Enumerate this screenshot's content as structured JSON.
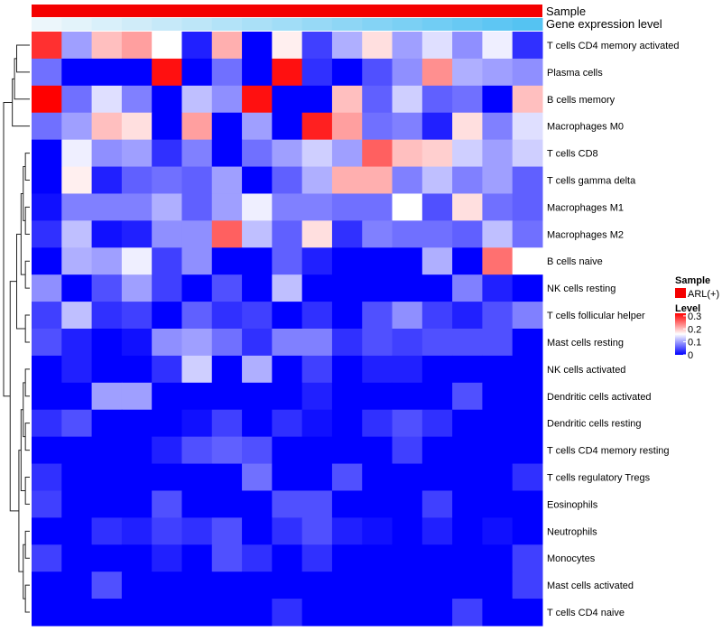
{
  "chart_data": {
    "type": "heatmap",
    "annotations": [
      "Sample",
      "Gene expression level"
    ],
    "colors": {
      "sample_bar": "#f40000",
      "expression_low": "#ecf6fb",
      "expression_high": "#55c3f2",
      "low": "#0000ff",
      "mid": "#ffffff",
      "high": "#ff0000",
      "tree": "#222222"
    },
    "rows": [
      "T cells CD4 memory activated",
      "Plasma cells",
      "B cells memory",
      "Macrophages M0",
      "T cells CD8",
      "T cells gamma delta",
      "Macrophages M1",
      "Macrophages M2",
      "B cells naive",
      "NK cells resting",
      "T cells follicular helper",
      "Mast cells resting",
      "NK cells activated",
      "Dendritic cells activated",
      "Dendritic cells resting",
      "T cells CD4 memory resting",
      "T cells regulatory  Tregs",
      "Eosinophils",
      "Neutrophils",
      "Monocytes",
      "Mast cells activated",
      "T cells CD4 naive"
    ],
    "values": [
      [
        0.29,
        0.1,
        0.2,
        0.22,
        0.16,
        0.02,
        0.21,
        0.0,
        0.17,
        0.04,
        0.11,
        0.18,
        0.1,
        0.14,
        0.09,
        0.15,
        0.03
      ],
      [
        0.07,
        0.0,
        0.0,
        0.0,
        0.31,
        0.0,
        0.07,
        0.0,
        0.31,
        0.03,
        0.0,
        0.05,
        0.09,
        0.23,
        0.11,
        0.1,
        0.09
      ],
      [
        0.32,
        0.07,
        0.14,
        0.08,
        0.0,
        0.12,
        0.09,
        0.31,
        0.0,
        0.0,
        0.2,
        0.06,
        0.13,
        0.06,
        0.07,
        0.0,
        0.2
      ],
      [
        0.07,
        0.1,
        0.2,
        0.18,
        0.0,
        0.22,
        0.0,
        0.1,
        0.0,
        0.3,
        0.22,
        0.07,
        0.08,
        0.02,
        0.18,
        0.08,
        0.14
      ],
      [
        0.0,
        0.15,
        0.09,
        0.1,
        0.03,
        0.08,
        0.0,
        0.07,
        0.1,
        0.13,
        0.1,
        0.26,
        0.2,
        0.19,
        0.13,
        0.1,
        0.13
      ],
      [
        0.0,
        0.17,
        0.02,
        0.06,
        0.07,
        0.06,
        0.1,
        0.0,
        0.06,
        0.11,
        0.21,
        0.21,
        0.08,
        0.12,
        0.08,
        0.1,
        0.06
      ],
      [
        0.01,
        0.08,
        0.08,
        0.08,
        0.11,
        0.06,
        0.1,
        0.15,
        0.08,
        0.08,
        0.07,
        0.07,
        0.16,
        0.05,
        0.18,
        0.07,
        0.06
      ],
      [
        0.03,
        0.12,
        0.01,
        0.02,
        0.09,
        0.09,
        0.26,
        0.12,
        0.06,
        0.18,
        0.03,
        0.08,
        0.07,
        0.07,
        0.06,
        0.12,
        0.07
      ],
      [
        0.0,
        0.11,
        0.1,
        0.15,
        0.04,
        0.09,
        0.0,
        0.0,
        0.06,
        0.02,
        0.0,
        0.0,
        0.0,
        0.11,
        0.0,
        0.25,
        0.16
      ],
      [
        0.09,
        0.0,
        0.05,
        0.1,
        0.04,
        0.0,
        0.05,
        0.0,
        0.12,
        0.0,
        0.0,
        0.0,
        0.0,
        0.0,
        0.08,
        0.02,
        0.0
      ],
      [
        0.04,
        0.12,
        0.03,
        0.04,
        0.0,
        0.06,
        0.03,
        0.04,
        0.0,
        0.03,
        0.0,
        0.05,
        0.09,
        0.04,
        0.02,
        0.05,
        0.08
      ],
      [
        0.05,
        0.02,
        0.0,
        0.01,
        0.09,
        0.1,
        0.07,
        0.03,
        0.08,
        0.08,
        0.03,
        0.05,
        0.04,
        0.05,
        0.05,
        0.05,
        0.0
      ],
      [
        0.0,
        0.02,
        0.0,
        0.0,
        0.03,
        0.13,
        0.0,
        0.11,
        0.0,
        0.04,
        0.0,
        0.02,
        0.02,
        0.0,
        0.0,
        0.0,
        0.0
      ],
      [
        0.0,
        0.0,
        0.1,
        0.1,
        0.0,
        0.0,
        0.0,
        0.0,
        0.0,
        0.02,
        0.0,
        0.0,
        0.0,
        0.0,
        0.05,
        0.0,
        0.0
      ],
      [
        0.03,
        0.05,
        0.0,
        0.0,
        0.0,
        0.01,
        0.04,
        0.0,
        0.03,
        0.01,
        0.0,
        0.03,
        0.05,
        0.03,
        0.0,
        0.0,
        0.0
      ],
      [
        0.0,
        0.0,
        0.0,
        0.0,
        0.02,
        0.05,
        0.06,
        0.05,
        0.0,
        0.0,
        0.0,
        0.0,
        0.04,
        0.0,
        0.0,
        0.0,
        0.0
      ],
      [
        0.03,
        0.0,
        0.0,
        0.0,
        0.0,
        0.0,
        0.0,
        0.07,
        0.0,
        0.0,
        0.05,
        0.0,
        0.0,
        0.0,
        0.0,
        0.0,
        0.03
      ],
      [
        0.04,
        0.0,
        0.0,
        0.0,
        0.05,
        0.0,
        0.0,
        0.0,
        0.05,
        0.05,
        0.0,
        0.0,
        0.0,
        0.04,
        0.0,
        0.0,
        0.0
      ],
      [
        0.0,
        0.0,
        0.03,
        0.02,
        0.04,
        0.03,
        0.05,
        0.0,
        0.03,
        0.05,
        0.02,
        0.01,
        0.0,
        0.02,
        0.0,
        0.01,
        0.0
      ],
      [
        0.04,
        0.0,
        0.0,
        0.0,
        0.02,
        0.0,
        0.05,
        0.03,
        0.0,
        0.03,
        0.0,
        0.0,
        0.0,
        0.0,
        0.0,
        0.0,
        0.04
      ],
      [
        0.0,
        0.0,
        0.05,
        0.0,
        0.0,
        0.0,
        0.0,
        0.0,
        0.0,
        0.0,
        0.0,
        0.0,
        0.0,
        0.0,
        0.0,
        0.0,
        0.04
      ],
      [
        0.0,
        0.0,
        0.0,
        0.0,
        0.0,
        0.0,
        0.0,
        0.0,
        0.03,
        0.0,
        0.0,
        0.0,
        0.0,
        0.0,
        0.04,
        0.0,
        0.0
      ]
    ],
    "color_range": [
      0,
      0.32
    ],
    "legend": {
      "sample_title": "Sample",
      "sample_entry": "ARL(+)",
      "level_title": "Level",
      "level_ticks": [
        {
          "label": "0.3",
          "value": 0.3
        },
        {
          "label": "0.2",
          "value": 0.2
        },
        {
          "label": "0.1",
          "value": 0.1
        },
        {
          "label": "0",
          "value": 0
        }
      ]
    },
    "dendrogram": {
      "type": "hierarchical",
      "leaves": 22,
      "merges": [
        [
          -1,
          -2
        ],
        [
          1,
          -3
        ],
        [
          -4,
          2
        ],
        [
          -5,
          -6
        ],
        [
          -7,
          -8
        ],
        [
          4,
          5
        ],
        [
          -9,
          -10
        ],
        [
          6,
          7
        ],
        [
          -11,
          -12
        ],
        [
          8,
          9
        ],
        [
          -13,
          -14
        ],
        [
          -15,
          -16
        ],
        [
          11,
          12
        ],
        [
          -17,
          -18
        ],
        [
          13,
          14
        ],
        [
          -19,
          -20
        ],
        [
          -21,
          -22
        ],
        [
          16,
          17
        ],
        [
          15,
          18
        ],
        [
          10,
          19
        ],
        [
          3,
          20
        ]
      ],
      "heights": [
        6,
        7,
        8,
        2,
        2,
        3,
        2,
        4,
        2,
        6,
        2,
        2,
        3,
        2,
        4,
        2,
        2,
        3,
        5,
        9,
        12
      ]
    }
  }
}
